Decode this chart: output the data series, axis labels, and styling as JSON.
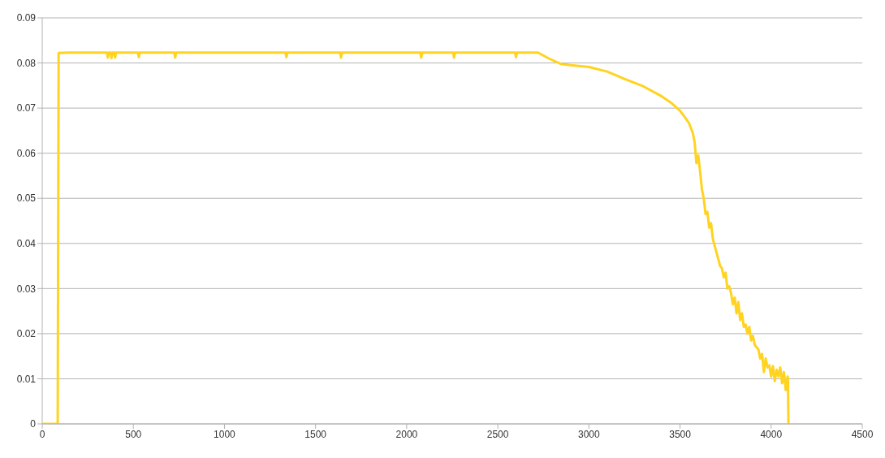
{
  "chart_data": {
    "type": "line",
    "x": [
      0,
      85,
      90,
      150,
      250,
      355,
      360,
      365,
      375,
      380,
      385,
      395,
      400,
      405,
      500,
      525,
      530,
      535,
      700,
      725,
      730,
      735,
      1000,
      1335,
      1340,
      1345,
      1500,
      1635,
      1640,
      1645,
      2075,
      2080,
      2085,
      2255,
      2260,
      2265,
      2500,
      2595,
      2600,
      2605,
      2720,
      2780,
      2845,
      2900,
      3000,
      3100,
      3200,
      3300,
      3400,
      3450,
      3500,
      3530,
      3550,
      3570,
      3580,
      3590,
      3600,
      3610,
      3620,
      3630,
      3640,
      3650,
      3660,
      3670,
      3680,
      3690,
      3700,
      3710,
      3720,
      3730,
      3740,
      3750,
      3760,
      3770,
      3780,
      3790,
      3800,
      3810,
      3820,
      3830,
      3840,
      3850,
      3860,
      3870,
      3880,
      3890,
      3900,
      3910,
      3920,
      3930,
      3940,
      3950,
      3960,
      3970,
      3980,
      3990,
      4000,
      4010,
      4020,
      4030,
      4040,
      4050,
      4060,
      4070,
      4080,
      4090,
      4092,
      4095
    ],
    "series": [
      {
        "color": "#ffd320",
        "values": [
          0,
          0,
          0.0822,
          0.0823,
          0.0823,
          0.0823,
          0.0812,
          0.0823,
          0.0823,
          0.0811,
          0.0823,
          0.0823,
          0.0812,
          0.0823,
          0.0823,
          0.0823,
          0.0813,
          0.0823,
          0.0823,
          0.0823,
          0.0812,
          0.0823,
          0.0823,
          0.0823,
          0.0813,
          0.0823,
          0.0823,
          0.0823,
          0.0812,
          0.0823,
          0.0823,
          0.0812,
          0.0823,
          0.0823,
          0.0812,
          0.0823,
          0.0823,
          0.0823,
          0.0813,
          0.0823,
          0.0823,
          0.081,
          0.0798,
          0.0795,
          0.0791,
          0.0781,
          0.0764,
          0.0748,
          0.0726,
          0.0712,
          0.0694,
          0.0678,
          0.0666,
          0.0645,
          0.0625,
          0.0578,
          0.0595,
          0.056,
          0.052,
          0.05,
          0.0465,
          0.047,
          0.0435,
          0.0445,
          0.041,
          0.0395,
          0.038,
          0.0365,
          0.035,
          0.0345,
          0.0325,
          0.0335,
          0.03,
          0.0305,
          0.029,
          0.0265,
          0.028,
          0.0245,
          0.027,
          0.023,
          0.0245,
          0.0215,
          0.022,
          0.02,
          0.0215,
          0.0185,
          0.0195,
          0.0175,
          0.017,
          0.0165,
          0.0145,
          0.0155,
          0.0115,
          0.0145,
          0.0125,
          0.013,
          0.0105,
          0.0128,
          0.0095,
          0.012,
          0.0105,
          0.0125,
          0.009,
          0.0115,
          0.0075,
          0.0105,
          0.0102,
          0
        ]
      }
    ],
    "xlim": [
      0,
      4500
    ],
    "xticks": [
      0,
      500,
      1000,
      1500,
      2000,
      2500,
      3000,
      3500,
      4000,
      4500
    ],
    "ylim": [
      0,
      0.09
    ],
    "yticks": [
      0,
      0.01,
      0.02,
      0.03,
      0.04,
      0.05,
      0.06,
      0.07,
      0.08,
      0.09
    ],
    "grid": "y",
    "marker": "none",
    "line_style": "solid"
  }
}
